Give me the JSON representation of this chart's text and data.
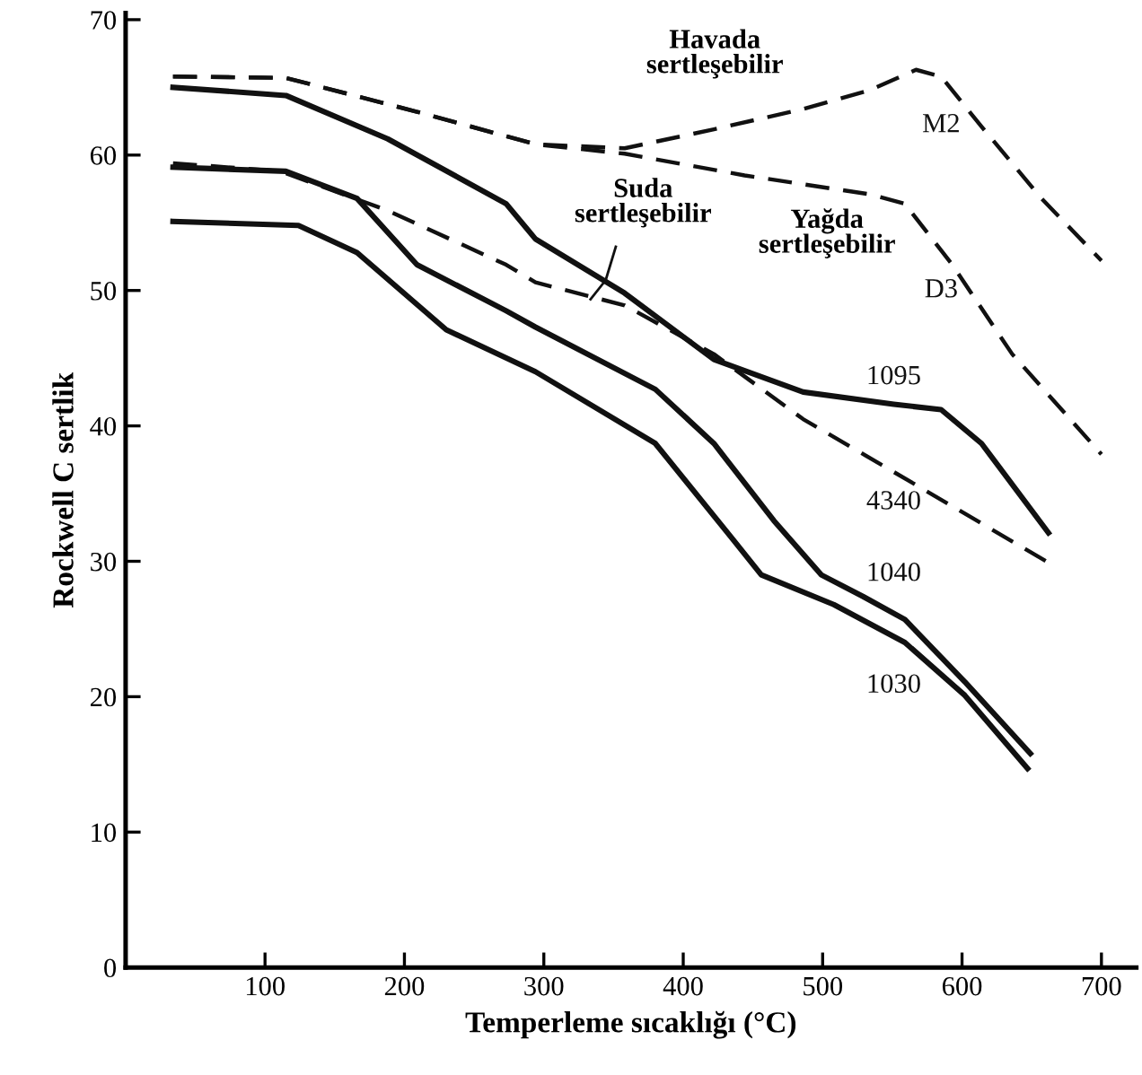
{
  "chart_data": {
    "type": "line",
    "xlabel": "Temperleme sıcaklığı (°C)",
    "ylabel": "Rockwell C sertlik",
    "xlim": [
      0,
      725
    ],
    "ylim": [
      0,
      70.5
    ],
    "xticks": [
      100,
      200,
      300,
      400,
      500,
      600,
      700
    ],
    "yticks": [
      0,
      10,
      20,
      30,
      40,
      50,
      60,
      70
    ],
    "grid": false,
    "legend": false,
    "marker": "none",
    "series": [
      {
        "name": "M2",
        "color": "#111111",
        "line_style": "dashed",
        "x": [
          34,
          115,
          209,
          294,
          358,
          422,
          486,
          534,
          567,
          585,
          614,
          657,
          700
        ],
        "values": [
          65.8,
          65.7,
          63.2,
          60.8,
          60.5,
          61.9,
          63.4,
          64.8,
          66.3,
          65.8,
          62.1,
          56.8,
          52.2
        ]
      },
      {
        "name": "D3",
        "color": "#111111",
        "line_style": "dashed",
        "x": [
          34,
          115,
          209,
          294,
          358,
          444,
          534,
          559,
          593,
          636,
          700
        ],
        "values": [
          65.8,
          65.7,
          63.2,
          60.8,
          60.1,
          58.5,
          57.1,
          56.4,
          51.9,
          45.3,
          37.9
        ]
      },
      {
        "name": "1095",
        "color": "#111111",
        "line_style": "solid",
        "x": [
          34,
          115,
          188,
          273,
          294,
          358,
          422,
          486,
          551,
          585,
          614,
          662
        ],
        "values": [
          65.0,
          64.4,
          61.2,
          56.4,
          53.8,
          49.8,
          44.9,
          42.5,
          41.6,
          41.2,
          38.7,
          32.1
        ]
      },
      {
        "name": "4340",
        "color": "#111111",
        "line_style": "dashed",
        "x": [
          34,
          111,
          188,
          273,
          294,
          358,
          422,
          486,
          551,
          662
        ],
        "values": [
          59.4,
          58.8,
          55.9,
          51.9,
          50.6,
          48.9,
          45.3,
          40.5,
          36.6,
          29.9
        ]
      },
      {
        "name": "1040",
        "color": "#111111",
        "line_style": "solid",
        "x": [
          34,
          115,
          166,
          209,
          273,
          294,
          380,
          422,
          465,
          499,
          529,
          559,
          602,
          649
        ],
        "values": [
          59.1,
          58.8,
          56.8,
          51.9,
          48.5,
          47.3,
          42.7,
          38.7,
          33.0,
          29.0,
          27.4,
          25.7,
          21.1,
          15.8
        ]
      },
      {
        "name": "1030",
        "color": "#111111",
        "line_style": "solid",
        "x": [
          34,
          124,
          166,
          230,
          294,
          380,
          435,
          456,
          508,
          559,
          602,
          647
        ],
        "values": [
          55.1,
          54.8,
          52.8,
          47.1,
          44.0,
          38.7,
          31.7,
          29.0,
          26.8,
          24.0,
          20.1,
          14.7
        ]
      }
    ],
    "annotations": [
      "Havada\nsertleşebilir",
      "Suda\nsertleşebilir",
      "Yağda\nsertleşebilir"
    ]
  }
}
